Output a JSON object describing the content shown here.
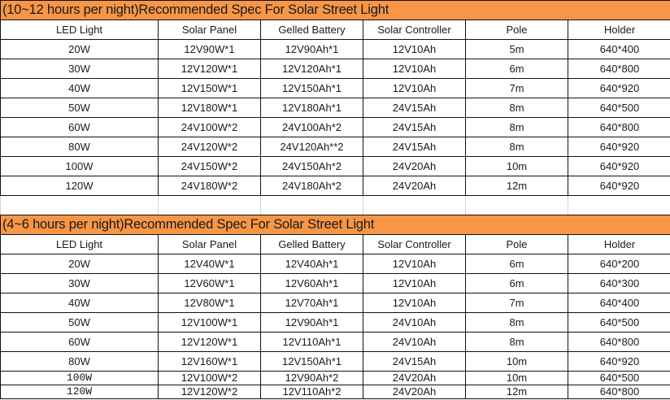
{
  "columns": [
    "LED Light",
    "Solar Panel",
    "Gelled Battery",
    "Solar Controller",
    "Pole",
    "Holder"
  ],
  "colors": {
    "title_bg": "#f79646",
    "border": "#111111"
  },
  "table1": {
    "title": "(10~12 hours per night)Recommended Spec For Solar Street Light",
    "rows": [
      [
        "20W",
        "12V90W*1",
        "12V90Ah*1",
        "12V10Ah",
        "5m",
        "640*400"
      ],
      [
        "30W",
        "12V120W*1",
        "12V120Ah*1",
        "12V10Ah",
        "6m",
        "640*800"
      ],
      [
        "40W",
        "12V150W*1",
        "12V150Ah*1",
        "12V10Ah",
        "7m",
        "640*920"
      ],
      [
        "50W",
        "12V180W*1",
        "12V180Ah*1",
        "24V15Ah",
        "8m",
        "640*500"
      ],
      [
        "60W",
        "24V100W*2",
        "24V100Ah*2",
        "24V15Ah",
        "8m",
        "640*800"
      ],
      [
        "80W",
        "24V120W*2",
        "24V120Ah**2",
        "24V15Ah",
        "8m",
        "640*920"
      ],
      [
        "100W",
        "24V150W*2",
        "24V150Ah*2",
        "24V20Ah",
        "10m",
        "640*920"
      ],
      [
        "120W",
        "24V180W*2",
        "24V180Ah*2",
        "24V20Ah",
        "12m",
        "640*920"
      ]
    ]
  },
  "table2": {
    "title": "(4~6 hours per night)Recommended Spec For Solar Street Light",
    "rows": [
      [
        "20W",
        "12V40W*1",
        "12V40Ah*1",
        "12V10Ah",
        "6m",
        "640*200"
      ],
      [
        "30W",
        "12V60W*1",
        "12V60Ah*1",
        "12V10Ah",
        "6m",
        "640*300"
      ],
      [
        "40W",
        "12V80W*1",
        "12V70Ah*1",
        "12V10Ah",
        "7m",
        "640*400"
      ],
      [
        "50W",
        "12V100W*1",
        "12V90Ah*1",
        "24V10Ah",
        "8m",
        "640*500"
      ],
      [
        "60W",
        "12V120W*1",
        "12V110Ah*1",
        "24V10Ah",
        "8m",
        "640*800"
      ],
      [
        "80W",
        "12V160W*1",
        "12V150Ah*1",
        "24V15Ah",
        "10m",
        "640*920"
      ],
      [
        "100W",
        "12V100W*2",
        "12V90Ah*2",
        "24V20Ah",
        "10m",
        "640*500"
      ],
      [
        "120W",
        "12V120W*2",
        "12V110Ah*2",
        "24V20Ah",
        "12m",
        "640*800"
      ]
    ]
  }
}
